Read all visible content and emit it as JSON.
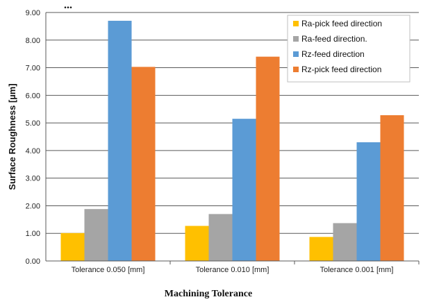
{
  "chart_data": {
    "type": "bar",
    "title_fragment": "...",
    "xlabel": "Machining Tolerance",
    "ylabel": "Surface Roughness [µm]",
    "ylim": [
      0,
      9
    ],
    "ytick_step": 1,
    "y_tick_format_decimals": 2,
    "grid": true,
    "legend_position": "top-right",
    "categories": [
      "Tolerance 0.050 [mm]",
      "Tolerance 0.010 [mm]",
      "Tolerance 0.001 [mm]"
    ],
    "series": [
      {
        "name": "Ra-pick feed direction",
        "color": "#FFC000",
        "values": [
          1.01,
          1.27,
          0.87
        ]
      },
      {
        "name": "Ra-feed direction.",
        "color": "#A5A5A5",
        "values": [
          1.88,
          1.7,
          1.37
        ]
      },
      {
        "name": "Rz-feed direction",
        "color": "#5B9BD5",
        "values": [
          8.7,
          5.15,
          4.3
        ]
      },
      {
        "name": "Rz-pick feed direction",
        "color": "#ED7D31",
        "values": [
          7.03,
          7.4,
          5.28
        ]
      }
    ]
  }
}
